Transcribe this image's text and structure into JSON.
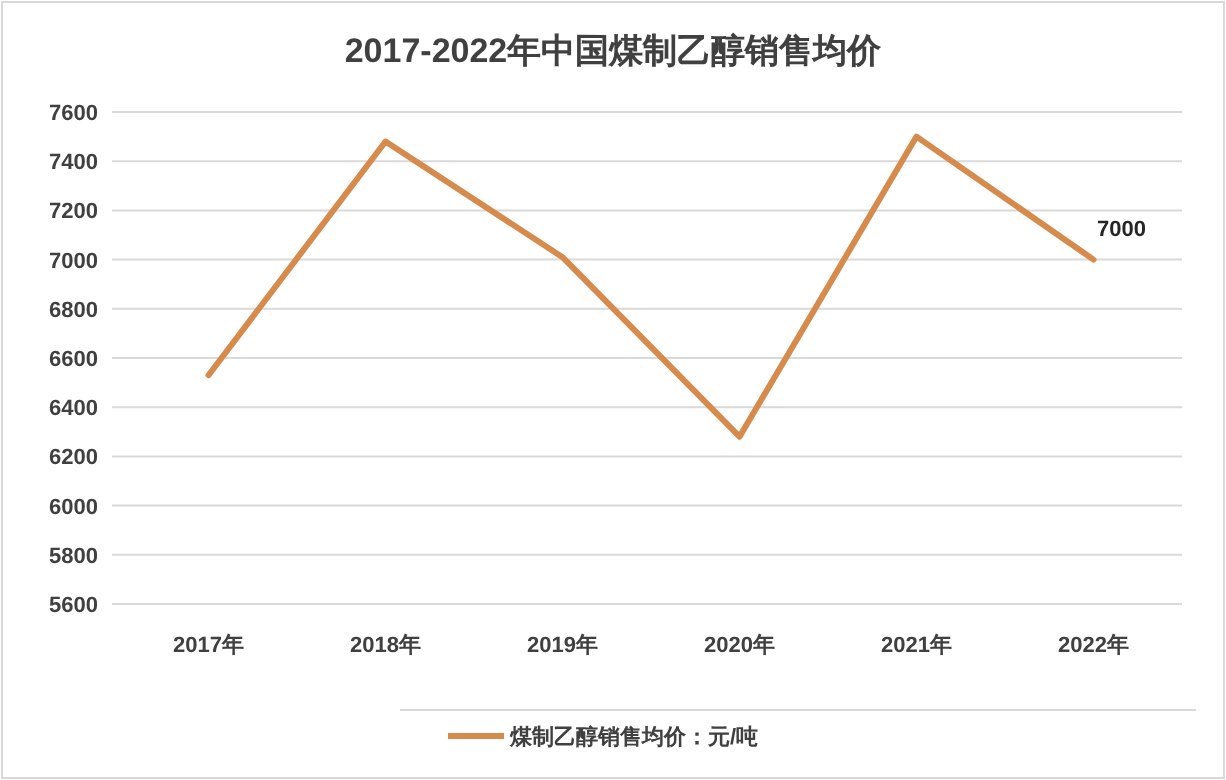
{
  "chart_data": {
    "type": "line",
    "title": "2017-2022年中国煤制乙醇销售均价",
    "categories": [
      "2017年",
      "2018年",
      "2019年",
      "2020年",
      "2021年",
      "2022年"
    ],
    "series": [
      {
        "name": "煤制乙醇销售均价：元/吨",
        "color": "#d68b4c",
        "values": [
          6530,
          7480,
          7010,
          6280,
          7500,
          7000
        ],
        "value_labels": [
          null,
          null,
          null,
          null,
          null,
          "7000"
        ]
      }
    ],
    "ylim": [
      5600,
      7600
    ],
    "yticks": [
      5600,
      5800,
      6000,
      6200,
      6400,
      6600,
      6800,
      7000,
      7200,
      7400,
      7600
    ],
    "grid": "y",
    "legend": "bottom",
    "marker": "none",
    "line_style": "solid"
  }
}
